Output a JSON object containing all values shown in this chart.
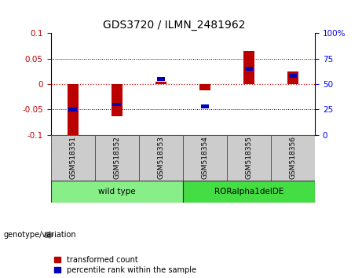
{
  "title": "GDS3720 / ILMN_2481962",
  "samples": [
    "GSM518351",
    "GSM518352",
    "GSM518353",
    "GSM518354",
    "GSM518355",
    "GSM518356"
  ],
  "red_values": [
    -0.103,
    -0.063,
    0.005,
    -0.013,
    0.065,
    0.025
  ],
  "blue_values_pct": [
    25,
    30,
    55,
    28,
    65,
    58
  ],
  "ylim_left": [
    -0.1,
    0.1
  ],
  "ylim_right": [
    0,
    100
  ],
  "yticks_left": [
    -0.1,
    -0.05,
    0,
    0.05,
    0.1
  ],
  "yticks_right": [
    0,
    25,
    50,
    75,
    100
  ],
  "bar_width": 0.25,
  "red_color": "#bb0000",
  "blue_color": "#0000bb",
  "zero_line_color": "#cc0000",
  "grid_color": "black",
  "bg_color": "#ffffff",
  "plot_bg": "#ffffff",
  "legend_items": [
    "transformed count",
    "percentile rank within the sample"
  ],
  "group_info": [
    {
      "start": 0,
      "end": 2,
      "label": "wild type",
      "color": "#88ee88"
    },
    {
      "start": 3,
      "end": 5,
      "label": "RORalpha1delDE",
      "color": "#44dd44"
    }
  ],
  "label_bg": "#cccccc"
}
